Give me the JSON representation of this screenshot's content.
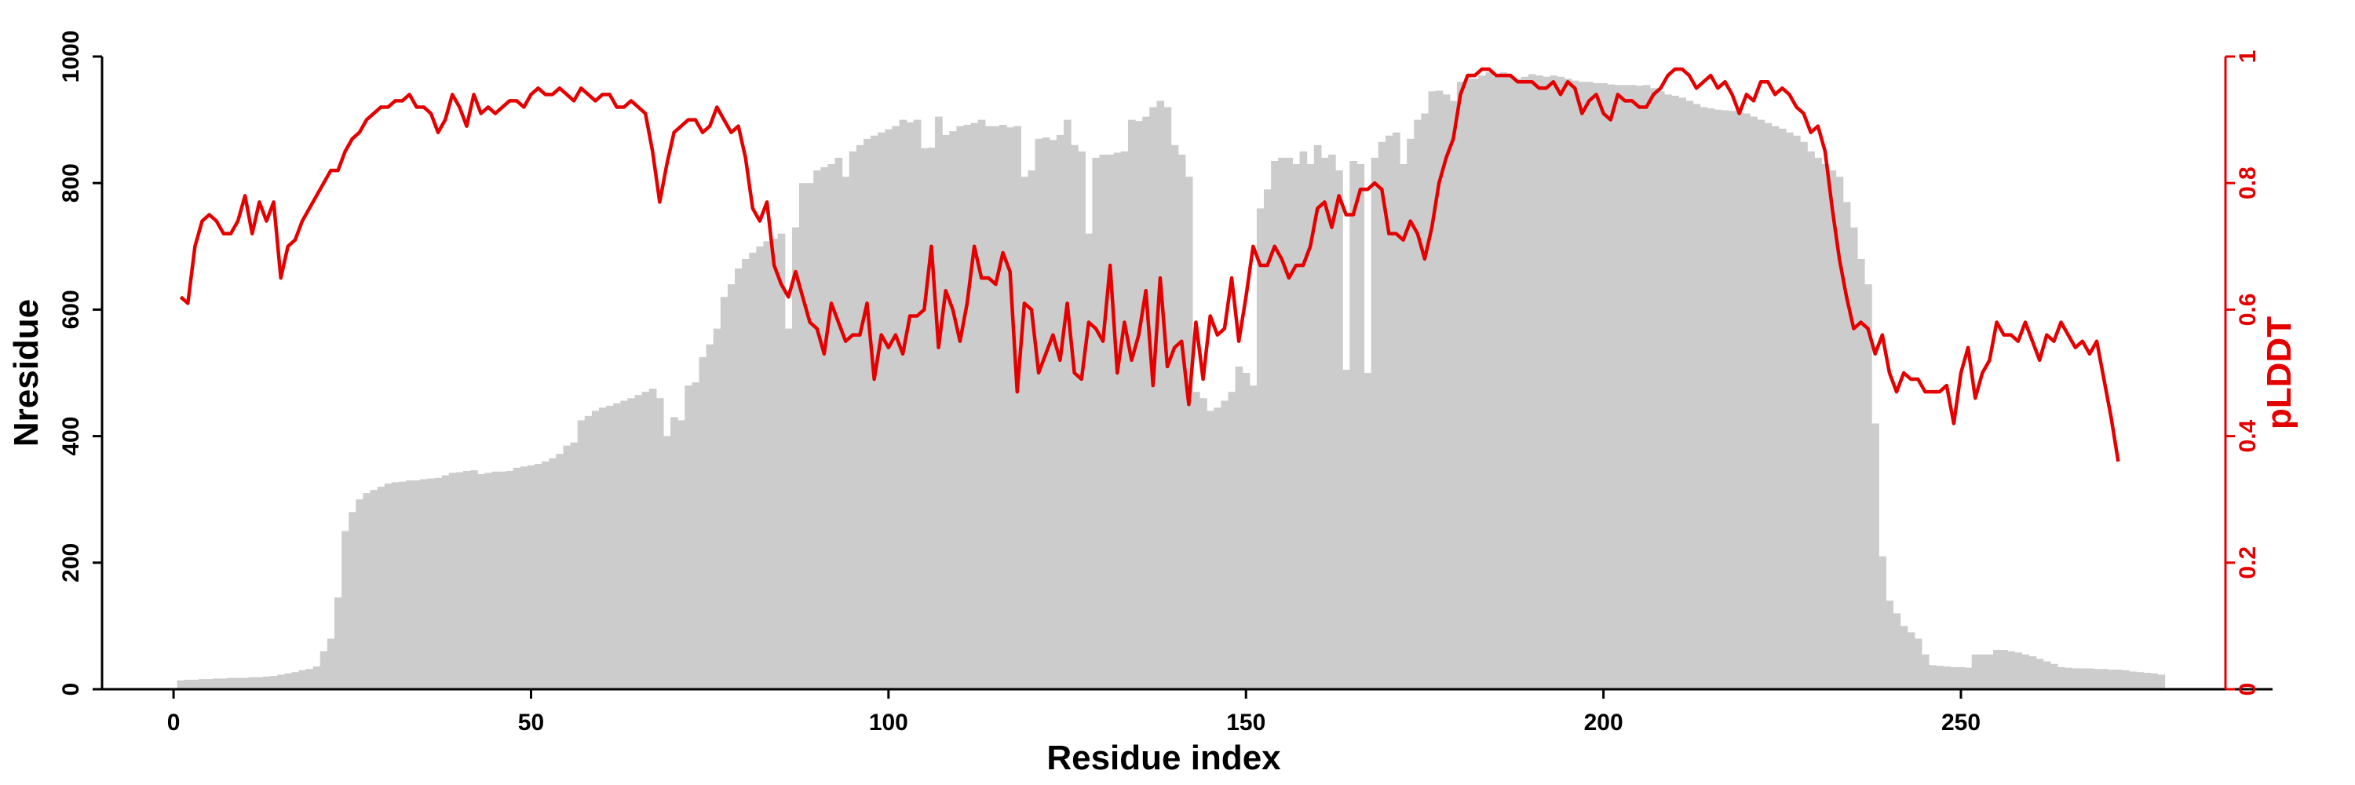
{
  "chart_data": {
    "type": "bar",
    "xlabel": "Residue index",
    "ylabel": "Nresidue",
    "y2label": "pLDDT",
    "xlim": [
      -10,
      287
    ],
    "ylim": [
      0,
      1000
    ],
    "y2lim": [
      0,
      1
    ],
    "xticks": [
      0,
      50,
      100,
      150,
      200,
      250
    ],
    "yticks": [
      0,
      200,
      400,
      600,
      800,
      1000
    ],
    "y2ticks": [
      0,
      0.2,
      0.4,
      0.6,
      0.8,
      1
    ],
    "y2tick_labels": [
      "0",
      "0.2",
      "0.4",
      "0.6",
      "0.8",
      "1"
    ],
    "grid": false,
    "bar_color": "#cccccc",
    "line_color": "#e50000",
    "series": [
      {
        "kind": "bar",
        "axis": "left",
        "values": [
          14,
          15,
          15,
          16,
          16,
          17,
          17,
          18,
          18,
          18,
          19,
          19,
          20,
          21,
          23,
          25,
          27,
          30,
          32,
          36,
          60,
          80,
          145,
          250,
          280,
          300,
          310,
          315,
          320,
          325,
          327,
          328,
          330,
          330,
          332,
          333,
          334,
          338,
          342,
          343,
          345,
          346,
          340,
          342,
          344,
          344,
          345,
          350,
          352,
          354,
          356,
          360,
          365,
          372,
          385,
          390,
          425,
          432,
          440,
          445,
          448,
          452,
          456,
          460,
          465,
          470,
          475,
          460,
          400,
          430,
          425,
          480,
          485,
          525,
          545,
          570,
          620,
          640,
          665,
          680,
          690,
          700,
          708,
          712,
          720,
          570,
          730,
          800,
          800,
          820,
          825,
          830,
          840,
          810,
          850,
          860,
          870,
          875,
          880,
          885,
          890,
          900,
          896,
          900,
          855,
          856,
          905,
          876,
          882,
          890,
          892,
          895,
          900,
          890,
          890,
          892,
          888,
          890,
          810,
          820,
          870,
          872,
          868,
          876,
          900,
          860,
          850,
          720,
          840,
          845,
          845,
          848,
          850,
          900,
          898,
          905,
          920,
          930,
          920,
          860,
          845,
          810,
          470,
          460,
          440,
          445,
          456,
          470,
          510,
          500,
          480,
          760,
          790,
          835,
          840,
          840,
          830,
          850,
          830,
          860,
          840,
          845,
          820,
          505,
          835,
          830,
          500,
          840,
          865,
          875,
          880,
          830,
          870,
          900,
          910,
          945,
          946,
          940,
          930,
          960,
          965,
          965,
          970,
          975,
          968,
          975,
          970,
          965,
          968,
          972,
          970,
          968,
          970,
          968,
          965,
          962,
          960,
          960,
          958,
          958,
          956,
          955,
          955,
          955,
          954,
          955,
          950,
          945,
          940,
          938,
          935,
          930,
          925,
          920,
          918,
          916,
          915,
          914,
          912,
          910,
          905,
          900,
          895,
          890,
          886,
          880,
          875,
          865,
          850,
          840,
          830,
          820,
          810,
          770,
          730,
          680,
          640,
          420,
          210,
          140,
          120,
          100,
          90,
          80,
          55,
          38,
          37,
          36,
          35,
          35,
          34,
          55,
          55,
          55,
          62,
          62,
          60,
          58,
          55,
          52,
          48,
          44,
          40,
          35,
          34,
          33,
          33,
          33,
          32,
          32,
          31,
          31,
          30,
          28,
          27,
          26,
          25,
          23
        ]
      },
      {
        "kind": "line",
        "axis": "right",
        "name": "pLDDT",
        "values": [
          0.62,
          0.61,
          0.7,
          0.74,
          0.75,
          0.74,
          0.72,
          0.72,
          0.74,
          0.78,
          0.72,
          0.77,
          0.74,
          0.77,
          0.65,
          0.7,
          0.71,
          0.74,
          0.76,
          0.78,
          0.8,
          0.82,
          0.82,
          0.85,
          0.87,
          0.88,
          0.9,
          0.91,
          0.92,
          0.92,
          0.93,
          0.93,
          0.94,
          0.92,
          0.92,
          0.91,
          0.88,
          0.9,
          0.94,
          0.92,
          0.89,
          0.94,
          0.91,
          0.92,
          0.91,
          0.92,
          0.93,
          0.93,
          0.92,
          0.94,
          0.95,
          0.94,
          0.94,
          0.95,
          0.94,
          0.93,
          0.95,
          0.94,
          0.93,
          0.94,
          0.94,
          0.92,
          0.92,
          0.93,
          0.92,
          0.91,
          0.85,
          0.77,
          0.83,
          0.88,
          0.89,
          0.9,
          0.9,
          0.88,
          0.89,
          0.92,
          0.9,
          0.88,
          0.89,
          0.84,
          0.76,
          0.74,
          0.77,
          0.67,
          0.64,
          0.62,
          0.66,
          0.62,
          0.58,
          0.57,
          0.53,
          0.61,
          0.58,
          0.55,
          0.56,
          0.56,
          0.61,
          0.49,
          0.56,
          0.54,
          0.56,
          0.53,
          0.59,
          0.59,
          0.6,
          0.7,
          0.54,
          0.63,
          0.6,
          0.55,
          0.61,
          0.7,
          0.65,
          0.65,
          0.64,
          0.69,
          0.66,
          0.47,
          0.61,
          0.6,
          0.5,
          0.53,
          0.56,
          0.52,
          0.61,
          0.5,
          0.49,
          0.58,
          0.57,
          0.55,
          0.67,
          0.5,
          0.58,
          0.52,
          0.56,
          0.63,
          0.48,
          0.65,
          0.51,
          0.54,
          0.55,
          0.45,
          0.58,
          0.49,
          0.59,
          0.56,
          0.57,
          0.65,
          0.55,
          0.62,
          0.7,
          0.67,
          0.67,
          0.7,
          0.68,
          0.65,
          0.67,
          0.67,
          0.7,
          0.76,
          0.77,
          0.73,
          0.78,
          0.75,
          0.75,
          0.79,
          0.79,
          0.8,
          0.79,
          0.72,
          0.72,
          0.71,
          0.74,
          0.72,
          0.68,
          0.73,
          0.8,
          0.84,
          0.87,
          0.94,
          0.97,
          0.97,
          0.98,
          0.98,
          0.97,
          0.97,
          0.97,
          0.96,
          0.96,
          0.96,
          0.95,
          0.95,
          0.96,
          0.94,
          0.96,
          0.95,
          0.91,
          0.93,
          0.94,
          0.91,
          0.9,
          0.94,
          0.93,
          0.93,
          0.92,
          0.92,
          0.94,
          0.95,
          0.97,
          0.98,
          0.98,
          0.97,
          0.95,
          0.96,
          0.97,
          0.95,
          0.96,
          0.94,
          0.91,
          0.94,
          0.93,
          0.96,
          0.96,
          0.94,
          0.95,
          0.94,
          0.92,
          0.91,
          0.88,
          0.89,
          0.85,
          0.76,
          0.68,
          0.62,
          0.57,
          0.58,
          0.57,
          0.53,
          0.56,
          0.5,
          0.47,
          0.5,
          0.49,
          0.49,
          0.47,
          0.47,
          0.47,
          0.48,
          0.42,
          0.5,
          0.54,
          0.46,
          0.5,
          0.52,
          0.58,
          0.56,
          0.56,
          0.55,
          0.58,
          0.55,
          0.52,
          0.56,
          0.55,
          0.58,
          0.56,
          0.54,
          0.55,
          0.53,
          0.55,
          0.49,
          0.43,
          0.36
        ]
      }
    ]
  }
}
